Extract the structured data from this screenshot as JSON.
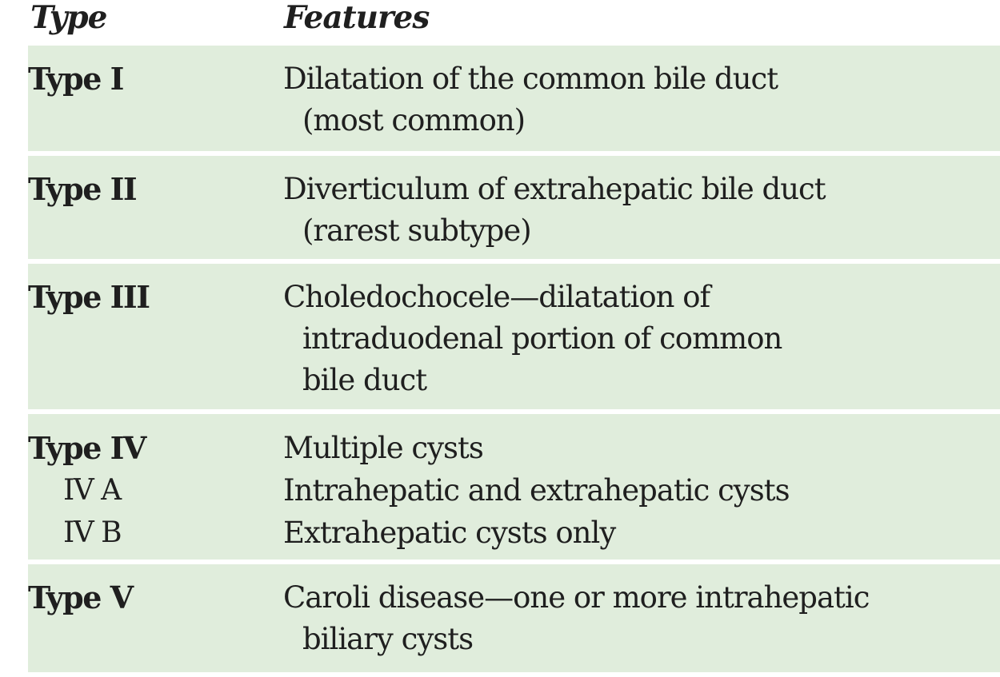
{
  "header": {
    "type_label": "Type",
    "features_label": "Features"
  },
  "rows": [
    {
      "type": "Type I",
      "subtypes": [],
      "features": [
        "Dilatation of the common bile duct",
        "(most common)"
      ]
    },
    {
      "type": "Type II",
      "subtypes": [],
      "features": [
        "Diverticulum of extrahepatic bile duct",
        "(rarest subtype)"
      ]
    },
    {
      "type": "Type III",
      "subtypes": [],
      "features": [
        "Choledochocele—dilatation of",
        "intraduodenal portion of common",
        "bile duct"
      ]
    },
    {
      "type": "Type IV",
      "subtypes": [
        "IV A",
        "IV B"
      ],
      "features": [
        "Multiple cysts",
        "Intrahepatic and extrahepatic cysts",
        "Extrahepatic cysts only"
      ]
    },
    {
      "type": "Type V",
      "subtypes": [],
      "features": [
        "Caroli disease—one or more intrahepatic",
        "biliary cysts"
      ]
    }
  ]
}
